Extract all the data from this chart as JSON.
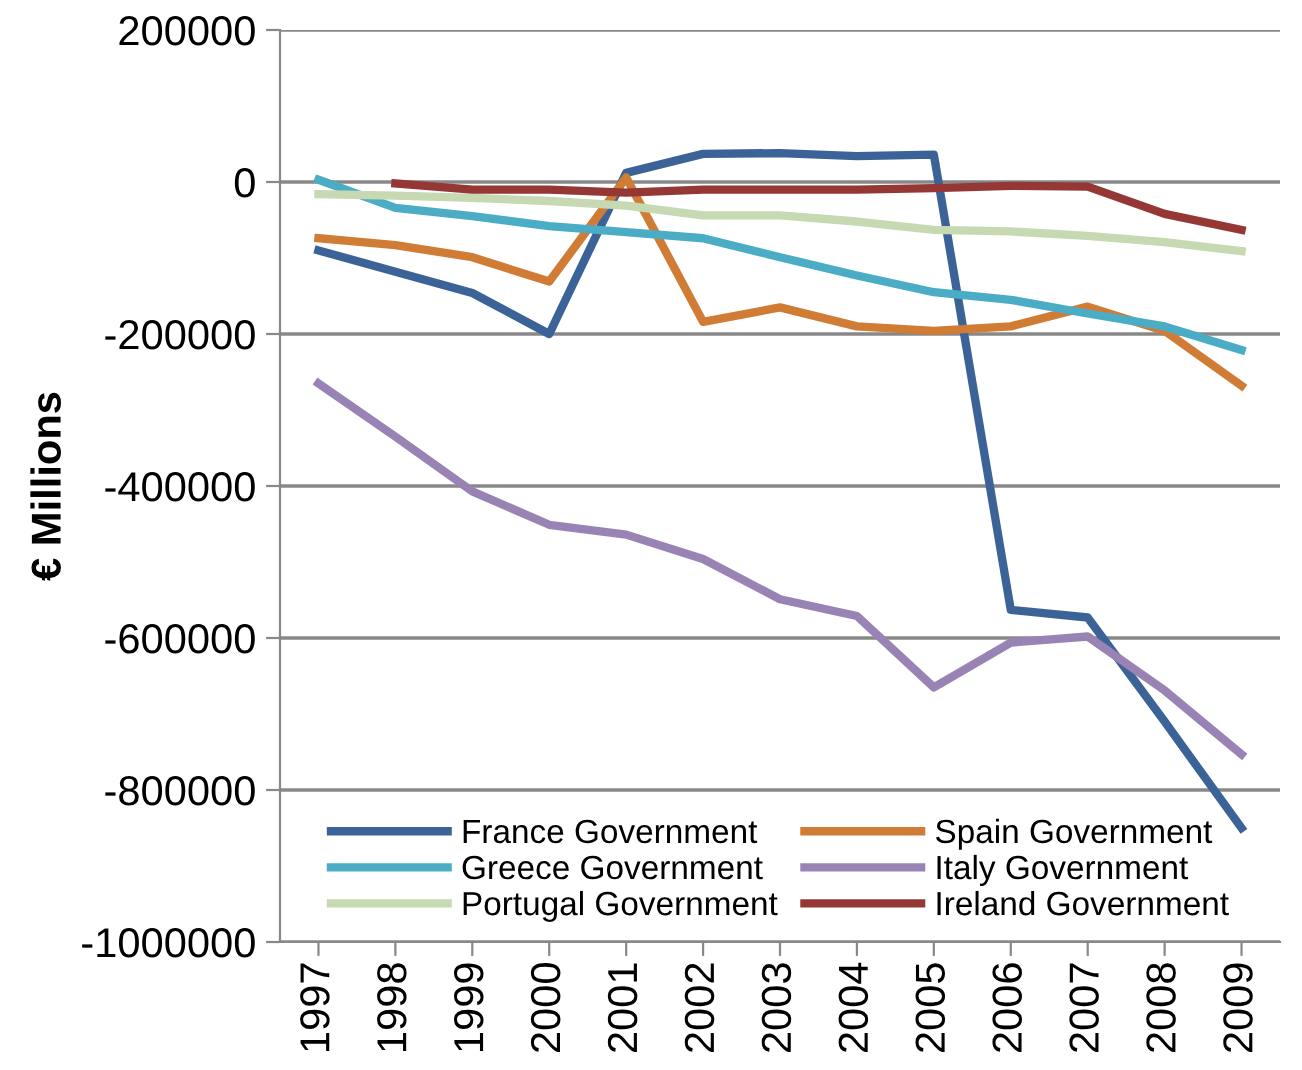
{
  "chart_data": {
    "type": "line",
    "ylabel": "€ Millions",
    "categories": [
      "1997",
      "1998",
      "1999",
      "2000",
      "2001",
      "2002",
      "2003",
      "2004",
      "2005",
      "2006",
      "2007",
      "2008",
      "2009"
    ],
    "series": [
      {
        "name": "France Government",
        "color": "#3c6397",
        "values": [
          -90000,
          -118000,
          -146000,
          -200000,
          12000,
          37000,
          38000,
          34000,
          36000,
          -563000,
          -573000,
          -710000,
          -850000
        ]
      },
      {
        "name": "Spain Government",
        "color": "#d07c35",
        "values": [
          -74000,
          -83000,
          -99000,
          -131000,
          6000,
          -184000,
          -165000,
          -190000,
          -196000,
          -190000,
          -164000,
          -196000,
          -268000
        ]
      },
      {
        "name": "Greece Government",
        "color": "#4aacc5",
        "values": [
          3000,
          -34000,
          -45000,
          -58000,
          -66000,
          -74000,
          -99000,
          -123000,
          -145000,
          -155000,
          -173000,
          -190000,
          -221000
        ]
      },
      {
        "name": "Italy Government",
        "color": "#9983b5",
        "values": [
          -265000,
          -335000,
          -407000,
          -451000,
          -464000,
          -496000,
          -549000,
          -571000,
          -665000,
          -606000,
          -598000,
          -669000,
          -753000
        ]
      },
      {
        "name": "Portugal Government",
        "color": "#c6d9b2",
        "values": [
          -16000,
          -18000,
          -21000,
          -25000,
          -31000,
          -44000,
          -44000,
          -52000,
          -63000,
          -65000,
          -71000,
          -79000,
          -91000
        ]
      },
      {
        "name": "Ireland Government",
        "color": "#953735",
        "values": [
          null,
          -2000,
          -10000,
          -10000,
          -14000,
          -10000,
          -10000,
          -10000,
          -8000,
          -5000,
          -6000,
          -42000,
          -63000
        ]
      }
    ],
    "ylim": [
      -1000000,
      200000
    ],
    "yticks": [
      -1000000,
      -800000,
      -600000,
      -400000,
      -200000,
      0,
      200000
    ],
    "grid": "y",
    "legend": "bottom",
    "marker": "none",
    "line_style": "solid"
  }
}
